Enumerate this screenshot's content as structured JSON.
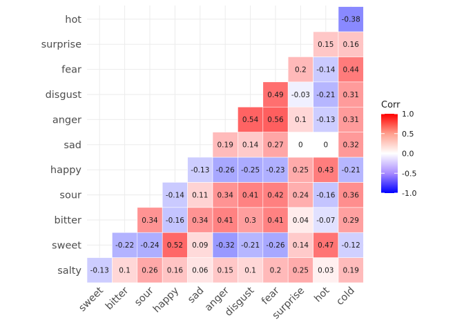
{
  "chart_data": {
    "type": "heatmap",
    "x_categories": [
      "sweet",
      "bitter",
      "sour",
      "happy",
      "sad",
      "anger",
      "disgust",
      "fear",
      "surprise",
      "hot",
      "cold"
    ],
    "y_categories": [
      "salty",
      "sweet",
      "bitter",
      "sour",
      "happy",
      "sad",
      "anger",
      "disgust",
      "fear",
      "surprise",
      "hot"
    ],
    "matrix": [
      [
        -0.13,
        0.1,
        0.26,
        0.16,
        0.06,
        0.15,
        0.1,
        0.2,
        0.25,
        0.03,
        0.19
      ],
      [
        null,
        -0.22,
        -0.24,
        0.52,
        0.09,
        -0.32,
        -0.21,
        -0.26,
        0.14,
        0.47,
        -0.12
      ],
      [
        null,
        null,
        0.34,
        -0.16,
        0.34,
        0.41,
        0.3,
        0.41,
        0.04,
        -0.07,
        0.29
      ],
      [
        null,
        null,
        null,
        -0.14,
        0.11,
        0.34,
        0.41,
        0.42,
        0.24,
        -0.16,
        0.36
      ],
      [
        null,
        null,
        null,
        null,
        -0.13,
        -0.26,
        -0.25,
        -0.23,
        0.25,
        0.43,
        -0.21
      ],
      [
        null,
        null,
        null,
        null,
        null,
        0.19,
        0.14,
        0.27,
        0,
        0,
        0.32
      ],
      [
        null,
        null,
        null,
        null,
        null,
        null,
        0.54,
        0.56,
        0.1,
        -0.13,
        0.31
      ],
      [
        null,
        null,
        null,
        null,
        null,
        null,
        null,
        0.49,
        -0.03,
        -0.21,
        0.31
      ],
      [
        null,
        null,
        null,
        null,
        null,
        null,
        null,
        null,
        0.2,
        -0.14,
        0.44
      ],
      [
        null,
        null,
        null,
        null,
        null,
        null,
        null,
        null,
        null,
        0.15,
        0.16
      ],
      [
        null,
        null,
        null,
        null,
        null,
        null,
        null,
        null,
        null,
        null,
        -0.38
      ]
    ],
    "legend": {
      "title": "Corr",
      "breaks": [
        "1.0",
        "0.5",
        "0.0",
        "-0.5",
        "-1.0"
      ],
      "limits": [
        -1,
        1
      ],
      "position": "right"
    },
    "colors": {
      "low": "#0000ff",
      "mid": "#ffffff",
      "high": "#ff0000"
    },
    "grid": true
  }
}
